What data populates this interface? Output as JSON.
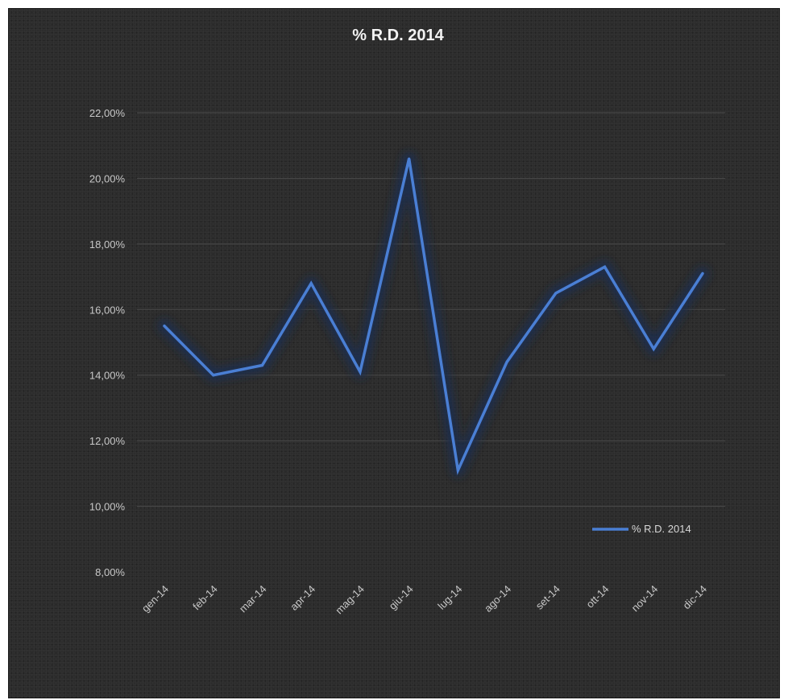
{
  "chart_data": {
    "type": "line",
    "title": "% R.D. 2014",
    "xlabel": "",
    "ylabel": "",
    "categories": [
      "gen-14",
      "feb-14",
      "mar-14",
      "apr-14",
      "mag-14",
      "giu-14",
      "lug-14",
      "ago-14",
      "set-14",
      "ott-14",
      "nov-14",
      "dic-14"
    ],
    "series": [
      {
        "name": "% R.D. 2014",
        "values": [
          15.5,
          14.0,
          14.3,
          16.8,
          14.1,
          20.6,
          11.1,
          14.4,
          16.5,
          17.3,
          14.8,
          17.1
        ]
      }
    ],
    "ylim": [
      8,
      22
    ],
    "yticks": [
      8,
      10,
      12,
      14,
      16,
      18,
      20,
      22
    ],
    "ytick_labels": [
      "8,00%",
      "10,00%",
      "12,00%",
      "14,00%",
      "16,00%",
      "18,00%",
      "20,00%",
      "22,00%"
    ],
    "grid": true,
    "legend_position": "right",
    "colors": {
      "background": "#2c2c2c",
      "line": "#4a7fd4",
      "glow": "#1f2f4f",
      "grid": "#4a4a4a"
    }
  }
}
